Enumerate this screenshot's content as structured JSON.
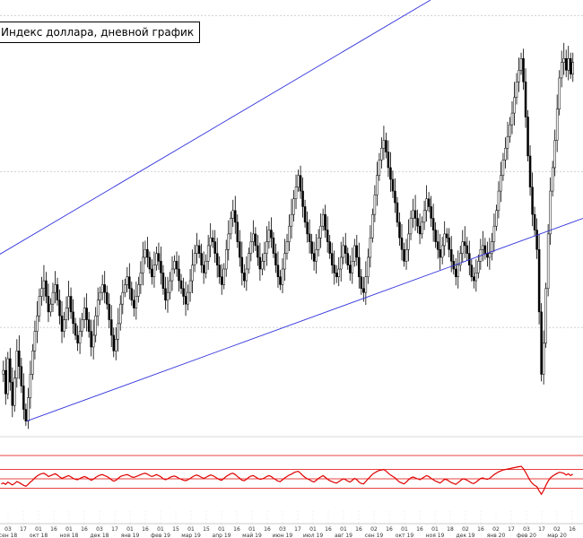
{
  "chart_data": {
    "type": "candlestick",
    "title": "Индекс доллара, дневной график",
    "xlabel": "",
    "ylabel": "",
    "grid": true,
    "legend": "none",
    "x_ticks": [
      {
        "day": "03",
        "month": "сен 18"
      },
      {
        "day": "17",
        "month": ""
      },
      {
        "day": "01",
        "month": "окт 18"
      },
      {
        "day": "16",
        "month": ""
      },
      {
        "day": "01",
        "month": "ноя 18"
      },
      {
        "day": "16",
        "month": ""
      },
      {
        "day": "03",
        "month": "дек 18"
      },
      {
        "day": "17",
        "month": ""
      },
      {
        "day": "01",
        "month": "янв 19"
      },
      {
        "day": "16",
        "month": ""
      },
      {
        "day": "01",
        "month": "фев 19"
      },
      {
        "day": "15",
        "month": ""
      },
      {
        "day": "01",
        "month": "мар 19"
      },
      {
        "day": "15",
        "month": ""
      },
      {
        "day": "01",
        "month": "апр 19"
      },
      {
        "day": "16",
        "month": ""
      },
      {
        "day": "01",
        "month": "май 19"
      },
      {
        "day": "16",
        "month": ""
      },
      {
        "day": "03",
        "month": "июн 19"
      },
      {
        "day": "17",
        "month": ""
      },
      {
        "day": "01",
        "month": "июл 19"
      },
      {
        "day": "16",
        "month": ""
      },
      {
        "day": "01",
        "month": "авг 19"
      },
      {
        "day": "16",
        "month": ""
      },
      {
        "day": "02",
        "month": "сен 19"
      },
      {
        "day": "16",
        "month": ""
      },
      {
        "day": "01",
        "month": "окт 19"
      },
      {
        "day": "16",
        "month": ""
      },
      {
        "day": "01",
        "month": "ноя 19"
      },
      {
        "day": "18",
        "month": ""
      },
      {
        "day": "02",
        "month": "дек 19"
      },
      {
        "day": "16",
        "month": ""
      },
      {
        "day": "02",
        "month": "янв 20"
      },
      {
        "day": "17",
        "month": ""
      },
      {
        "day": "03",
        "month": "фев 20"
      },
      {
        "day": "17",
        "month": ""
      },
      {
        "day": "02",
        "month": "мар 20"
      },
      {
        "day": "16",
        "month": ""
      }
    ],
    "price_path": [
      94.8,
      94.9,
      94.3,
      95.2,
      94.6,
      94.0,
      94.7,
      95.4,
      95.0,
      94.5,
      93.9,
      93.6,
      94.2,
      94.8,
      95.4,
      95.9,
      96.3,
      96.8,
      97.0,
      97.2,
      96.8,
      96.4,
      96.6,
      96.9,
      97.1,
      96.7,
      96.3,
      95.9,
      96.2,
      96.5,
      96.8,
      96.4,
      96.1,
      95.8,
      95.6,
      95.9,
      96.2,
      96.5,
      96.2,
      95.9,
      95.5,
      95.8,
      96.3,
      96.7,
      96.9,
      97.1,
      96.9,
      96.6,
      96.2,
      95.8,
      95.4,
      95.7,
      96.1,
      96.6,
      96.9,
      97.1,
      97.3,
      97.0,
      96.7,
      96.5,
      96.8,
      97.1,
      97.4,
      97.8,
      98.0,
      97.8,
      97.5,
      97.3,
      97.6,
      97.9,
      97.7,
      97.4,
      97.0,
      96.7,
      96.9,
      97.2,
      97.5,
      97.7,
      97.5,
      97.2,
      97.0,
      96.8,
      96.6,
      96.9,
      97.2,
      97.6,
      97.9,
      98.1,
      97.9,
      97.6,
      97.4,
      97.7,
      98.1,
      98.3,
      98.2,
      97.9,
      97.6,
      97.3,
      97.1,
      97.5,
      98.0,
      98.4,
      98.8,
      99.0,
      98.7,
      98.2,
      97.8,
      97.4,
      97.2,
      97.5,
      97.9,
      98.2,
      98.4,
      98.1,
      97.8,
      97.5,
      97.7,
      97.9,
      98.2,
      98.5,
      98.3,
      97.9,
      97.6,
      97.3,
      97.1,
      97.5,
      97.9,
      98.2,
      98.6,
      98.9,
      99.3,
      99.6,
      99.9,
      99.5,
      99.1,
      98.7,
      98.4,
      98.2,
      97.9,
      97.7,
      98.0,
      98.3,
      98.6,
      98.9,
      98.5,
      98.2,
      97.9,
      97.6,
      97.4,
      97.3,
      97.5,
      97.8,
      98.1,
      97.9,
      97.6,
      97.4,
      97.7,
      98.1,
      97.8,
      97.3,
      97.0,
      96.9,
      97.3,
      97.8,
      98.3,
      98.9,
      99.4,
      99.9,
      100.3,
      100.6,
      100.8,
      100.5,
      100.1,
      99.8,
      99.5,
      99.2,
      98.7,
      98.3,
      98.0,
      97.7,
      98.0,
      98.4,
      98.8,
      99.0,
      98.8,
      98.6,
      98.4,
      98.7,
      99.0,
      99.3,
      99.1,
      98.8,
      98.5,
      98.2,
      98.0,
      97.8,
      98.1,
      98.4,
      98.3,
      98.0,
      97.7,
      97.5,
      97.3,
      97.6,
      97.9,
      98.2,
      98.1,
      97.9,
      97.6,
      97.3,
      97.2,
      97.4,
      97.7,
      98.0,
      98.1,
      97.9,
      97.8,
      97.9,
      98.2,
      98.6,
      99.0,
      99.5,
      99.9,
      100.3,
      100.6,
      100.9,
      101.2,
      101.5,
      101.9,
      102.3,
      102.6,
      102.9,
      102.3,
      101.4,
      100.4,
      99.6,
      98.9,
      98.5,
      98.0,
      96.4,
      94.8,
      95.6,
      97.0,
      98.4,
      99.5,
      100.1,
      100.8,
      101.6,
      102.4,
      102.8,
      102.9,
      102.6,
      102.9,
      102.5,
      102.8
    ],
    "channel_upper": [
      {
        "x": -6,
        "y": 97.8
      },
      {
        "x": 480,
        "y": 104.4
      }
    ],
    "channel_lower": [
      {
        "x": 30,
        "y": 93.6
      },
      {
        "x": 650,
        "y": 98.8
      }
    ],
    "ylim": [
      93.2,
      104.4
    ],
    "rsi": {
      "levels": [
        100,
        70,
        50,
        30
      ],
      "values": [
        39,
        41,
        38,
        43,
        40,
        37,
        40,
        44,
        42,
        39,
        36,
        34,
        38,
        43,
        47,
        52,
        56,
        59,
        61,
        62,
        59,
        55,
        57,
        59,
        61,
        58,
        54,
        51,
        53,
        55,
        57,
        54,
        51,
        49,
        48,
        51,
        53,
        55,
        53,
        50,
        47,
        49,
        53,
        56,
        58,
        59,
        57,
        55,
        52,
        48,
        45,
        47,
        51,
        55,
        57,
        58,
        59,
        57,
        54,
        53,
        55,
        57,
        59,
        61,
        62,
        60,
        57,
        55,
        57,
        59,
        57,
        54,
        50,
        48,
        50,
        53,
        55,
        56,
        54,
        51,
        49,
        47,
        46,
        48,
        51,
        54,
        57,
        58,
        56,
        53,
        51,
        53,
        56,
        58,
        57,
        54,
        51,
        48,
        47,
        51,
        55,
        58,
        61,
        62,
        59,
        55,
        51,
        47,
        46,
        49,
        53,
        56,
        57,
        54,
        51,
        49,
        50,
        52,
        55,
        57,
        55,
        51,
        48,
        45,
        44,
        48,
        52,
        55,
        58,
        60,
        63,
        65,
        66,
        62,
        57,
        53,
        50,
        48,
        45,
        43,
        47,
        51,
        54,
        57,
        53,
        49,
        46,
        44,
        42,
        41,
        44,
        47,
        50,
        48,
        45,
        43,
        47,
        51,
        48,
        43,
        40,
        39,
        44,
        50,
        55,
        60,
        63,
        66,
        68,
        69,
        70,
        67,
        62,
        58,
        55,
        52,
        47,
        43,
        41,
        39,
        43,
        48,
        52,
        54,
        52,
        50,
        48,
        51,
        54,
        57,
        55,
        51,
        48,
        45,
        43,
        41,
        45,
        49,
        48,
        45,
        42,
        40,
        38,
        42,
        46,
        50,
        49,
        47,
        44,
        41,
        40,
        43,
        47,
        51,
        52,
        50,
        49,
        51,
        55,
        59,
        62,
        65,
        67,
        69,
        70,
        71,
        72,
        73,
        74,
        75,
        76,
        77,
        72,
        64,
        55,
        46,
        40,
        36,
        33,
        24,
        17,
        25,
        36,
        45,
        52,
        56,
        59,
        62,
        64,
        63,
        62,
        58,
        61,
        57,
        60
      ]
    }
  }
}
